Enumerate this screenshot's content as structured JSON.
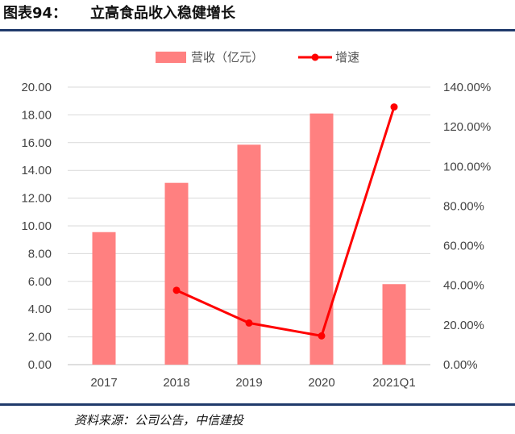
{
  "figure": {
    "label": "图表94：",
    "title": "立高食品收入稳健增长",
    "source": "资料来源：公司公告，中信建投"
  },
  "chart_data": {
    "type": "bar",
    "categories": [
      "2017",
      "2018",
      "2019",
      "2020",
      "2021Q1"
    ],
    "series": [
      {
        "name": "营收（亿元）",
        "type": "bar",
        "axis": "left",
        "color": "#ff8080",
        "values": [
          9.55,
          13.1,
          15.85,
          18.1,
          5.8
        ]
      },
      {
        "name": "增速",
        "type": "line",
        "axis": "right",
        "color": "#ff0000",
        "values": [
          null,
          37.5,
          21.0,
          14.5,
          130.0
        ]
      }
    ],
    "left_axis": {
      "ylim": [
        0,
        20
      ],
      "ticks": [
        "0.00",
        "2.00",
        "4.00",
        "6.00",
        "8.00",
        "10.00",
        "12.00",
        "14.00",
        "16.00",
        "18.00",
        "20.00"
      ]
    },
    "right_axis": {
      "ylim": [
        0,
        140
      ],
      "ticks": [
        "0.00%",
        "20.00%",
        "40.00%",
        "60.00%",
        "80.00%",
        "100.00%",
        "120.00%",
        "140.00%"
      ]
    },
    "grid": true,
    "legend": "top"
  }
}
